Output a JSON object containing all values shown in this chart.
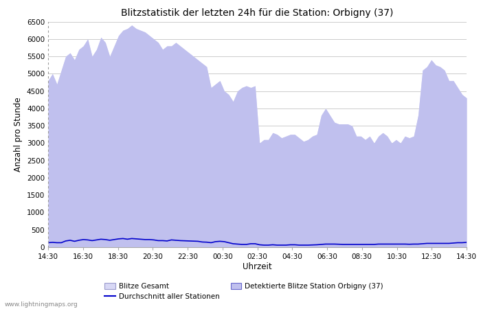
{
  "title": "Blitzstatistik der letzten 24h für die Station: Orbigny (37)",
  "xlabel": "Uhrzeit",
  "ylabel": "Anzahl pro Stunde",
  "ylim": [
    0,
    6500
  ],
  "yticks": [
    0,
    500,
    1000,
    1500,
    2000,
    2500,
    3000,
    3500,
    4000,
    4500,
    5000,
    5500,
    6000,
    6500
  ],
  "xtick_labels": [
    "14:30",
    "16:30",
    "18:30",
    "20:30",
    "22:30",
    "00:30",
    "02:30",
    "04:30",
    "06:30",
    "08:30",
    "10:30",
    "12:30",
    "14:30"
  ],
  "background_color": "#ffffff",
  "fill_color_gesamt": "#d8d8f5",
  "fill_color_station": "#c0c0ee",
  "line_color_avg": "#0000cc",
  "watermark": "www.lightningmaps.org",
  "legend_items": [
    {
      "label": "Blitze Gesamt",
      "color": "#d8d8f5",
      "type": "patch"
    },
    {
      "label": "Detektierte Blitze Station Orbigny (37)",
      "color": "#c0c0ee",
      "type": "patch"
    },
    {
      "label": "Durchschnitt aller Stationen",
      "color": "#0000cc",
      "type": "line"
    }
  ],
  "x_values": [
    0,
    1,
    2,
    3,
    4,
    5,
    6,
    7,
    8,
    9,
    10,
    11,
    12,
    13,
    14,
    15,
    16,
    17,
    18,
    19,
    20,
    21,
    22,
    23,
    24,
    25,
    26,
    27,
    28,
    29,
    30,
    31,
    32,
    33,
    34,
    35,
    36,
    37,
    38,
    39,
    40,
    41,
    42,
    43,
    44,
    45,
    46,
    47,
    48,
    49,
    50,
    51,
    52,
    53,
    54,
    55,
    56,
    57,
    58,
    59,
    60,
    61,
    62,
    63,
    64,
    65,
    66,
    67,
    68,
    69,
    70,
    71,
    72,
    73,
    74,
    75,
    76,
    77,
    78,
    79,
    80,
    81,
    82,
    83,
    84,
    85,
    86,
    87,
    88,
    89,
    90,
    91,
    92,
    93,
    94,
    95
  ],
  "blitze_gesamt": [
    4800,
    5000,
    4700,
    5100,
    5500,
    5600,
    5400,
    5700,
    5800,
    6000,
    5500,
    5700,
    6050,
    5900,
    5500,
    5800,
    6100,
    6250,
    6300,
    6400,
    6300,
    6250,
    6200,
    6100,
    6000,
    5900,
    5700,
    5800,
    5800,
    5900,
    5800,
    5700,
    5600,
    5500,
    5400,
    5300,
    5200,
    4600,
    4700,
    4800,
    4500,
    4400,
    4200,
    4500,
    4600,
    4650,
    4600,
    4650,
    3000,
    3100,
    3100,
    3300,
    3250,
    3150,
    3200,
    3250,
    3250,
    3150,
    3050,
    3100,
    3200,
    3250,
    3800,
    4000,
    3800,
    3600,
    3550,
    3550,
    3550,
    3500,
    3200,
    3200,
    3100,
    3200,
    3000,
    3200,
    3300,
    3200,
    3000,
    3100,
    3000,
    3200,
    3150,
    3200,
    3800,
    5100,
    5200,
    5400,
    5250,
    5200,
    5100,
    4800,
    4800,
    4600,
    4400,
    4300
  ],
  "blitze_station": [
    4800,
    5000,
    4700,
    5100,
    5500,
    5600,
    5400,
    5700,
    5800,
    6000,
    5500,
    5700,
    6050,
    5900,
    5500,
    5800,
    6100,
    6250,
    6300,
    6400,
    6300,
    6250,
    6200,
    6100,
    6000,
    5900,
    5700,
    5800,
    5800,
    5900,
    5800,
    5700,
    5600,
    5500,
    5400,
    5300,
    5200,
    4600,
    4700,
    4800,
    4500,
    4400,
    4200,
    4500,
    4600,
    4650,
    4600,
    4650,
    3000,
    3100,
    3100,
    3300,
    3250,
    3150,
    3200,
    3250,
    3250,
    3150,
    3050,
    3100,
    3200,
    3250,
    3800,
    4000,
    3800,
    3600,
    3550,
    3550,
    3550,
    3500,
    3200,
    3200,
    3100,
    3200,
    3000,
    3200,
    3300,
    3200,
    3000,
    3100,
    3000,
    3200,
    3150,
    3200,
    3800,
    5100,
    5200,
    5400,
    5250,
    5200,
    5100,
    4800,
    4800,
    4600,
    4400,
    4300
  ],
  "avg_stationen": [
    130,
    140,
    130,
    130,
    180,
    200,
    170,
    200,
    220,
    210,
    190,
    210,
    230,
    220,
    200,
    220,
    240,
    250,
    230,
    250,
    240,
    230,
    220,
    220,
    210,
    190,
    190,
    180,
    210,
    200,
    190,
    185,
    180,
    175,
    170,
    150,
    145,
    130,
    160,
    170,
    160,
    130,
    100,
    90,
    80,
    80,
    100,
    100,
    70,
    60,
    60,
    70,
    60,
    60,
    60,
    70,
    70,
    60,
    60,
    60,
    65,
    70,
    80,
    90,
    90,
    90,
    85,
    80,
    80,
    80,
    80,
    80,
    80,
    80,
    80,
    90,
    90,
    90,
    90,
    90,
    90,
    90,
    85,
    90,
    90,
    100,
    110,
    110,
    110,
    110,
    110,
    110,
    120,
    130,
    130,
    140
  ]
}
